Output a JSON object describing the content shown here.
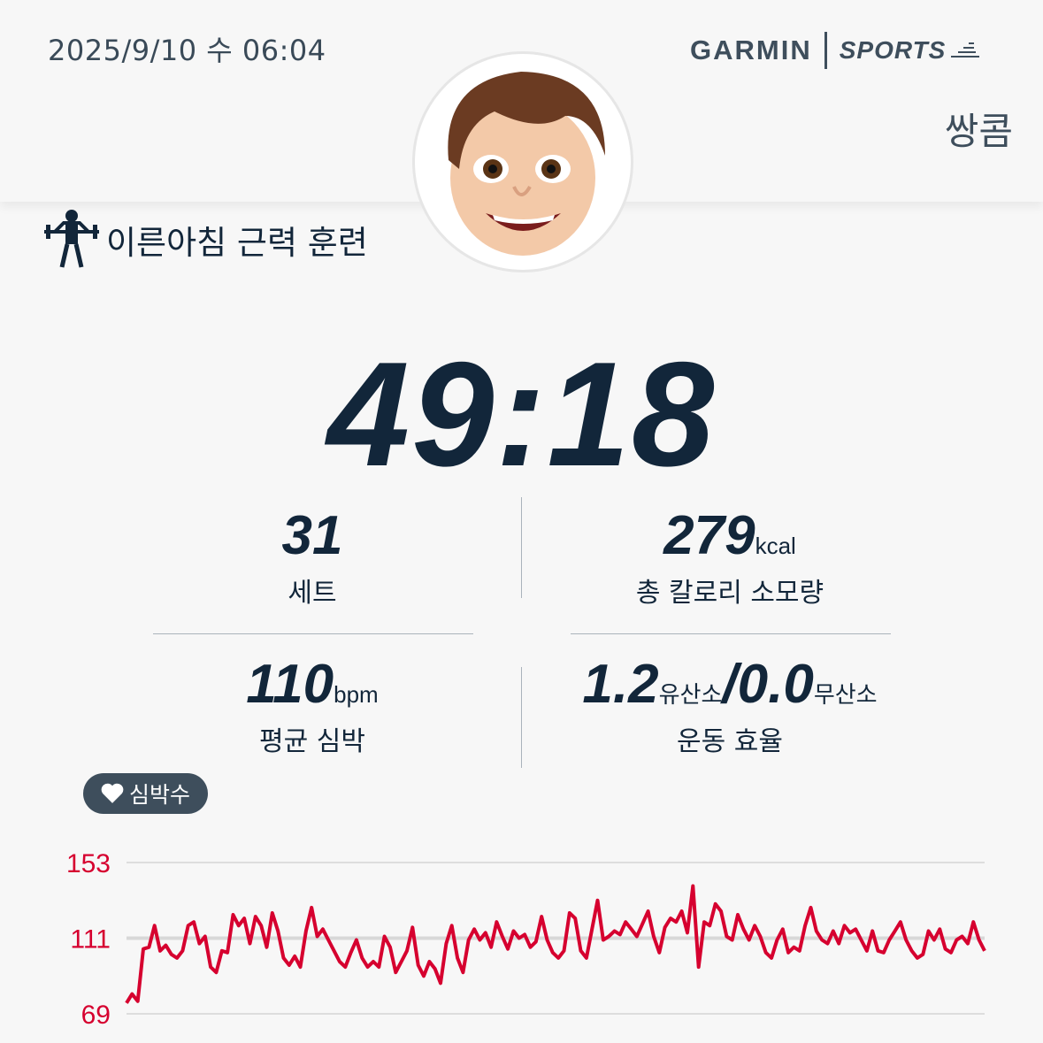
{
  "header": {
    "datetime": "2025/9/10 수 06:04",
    "brand": "GARMIN",
    "brand_sub": "SPORTS",
    "username": "쌍콤"
  },
  "activity": {
    "icon": "weightlifting-icon",
    "title": "이른아침 근력 훈련"
  },
  "duration": "49:18",
  "stats": [
    {
      "value": "31",
      "unit": "",
      "label": "세트"
    },
    {
      "value": "279",
      "unit": "kcal",
      "label": "총 칼로리 소모량"
    },
    {
      "value": "110",
      "unit": "bpm",
      "label": "평균 심박"
    },
    {
      "value": "1.2",
      "unit": "유산소",
      "value2": "/0.0",
      "unit2": "무산소",
      "label": "운동 효율"
    }
  ],
  "hr_badge": {
    "icon": "heart-icon",
    "label": "심박수"
  },
  "colors": {
    "accent": "#d6002f",
    "text": "#12263a",
    "badge": "#3e4e5c"
  },
  "chart_data": {
    "type": "line",
    "yticks": [
      "153",
      "111",
      "69"
    ],
    "ylim": [
      69,
      153
    ],
    "grid": true,
    "series": [
      {
        "values": [
          75,
          80,
          76,
          105,
          106,
          118,
          104,
          107,
          102,
          100,
          104,
          118,
          120,
          108,
          112,
          95,
          92,
          104,
          103,
          124,
          118,
          122,
          108,
          123,
          118,
          106,
          125,
          115,
          100,
          96,
          101,
          95,
          115,
          128,
          112,
          116,
          110,
          104,
          98,
          95,
          103,
          110,
          100,
          95,
          98,
          95,
          112,
          106,
          92,
          98,
          104,
          117,
          96,
          90,
          98,
          94,
          86,
          108,
          118,
          100,
          92,
          110,
          116,
          110,
          114,
          106,
          120,
          112,
          105,
          115,
          111,
          113,
          106,
          109,
          123,
          110,
          103,
          100,
          104,
          125,
          122,
          104,
          100,
          116,
          132,
          110,
          112,
          115,
          113,
          120,
          116,
          112,
          119,
          126,
          112,
          103,
          117,
          122,
          120,
          126,
          114,
          140,
          95,
          120,
          118,
          130,
          126,
          112,
          110,
          124,
          116,
          110,
          118,
          112,
          103,
          100,
          110,
          116,
          103,
          106,
          104,
          118,
          128,
          115,
          110,
          108,
          115,
          108,
          118,
          114,
          116,
          110,
          104,
          115,
          104,
          103,
          110,
          115,
          120,
          110,
          104,
          100,
          102,
          115,
          110,
          116,
          105,
          103,
          110,
          112,
          108,
          120,
          110,
          104
        ]
      }
    ]
  }
}
